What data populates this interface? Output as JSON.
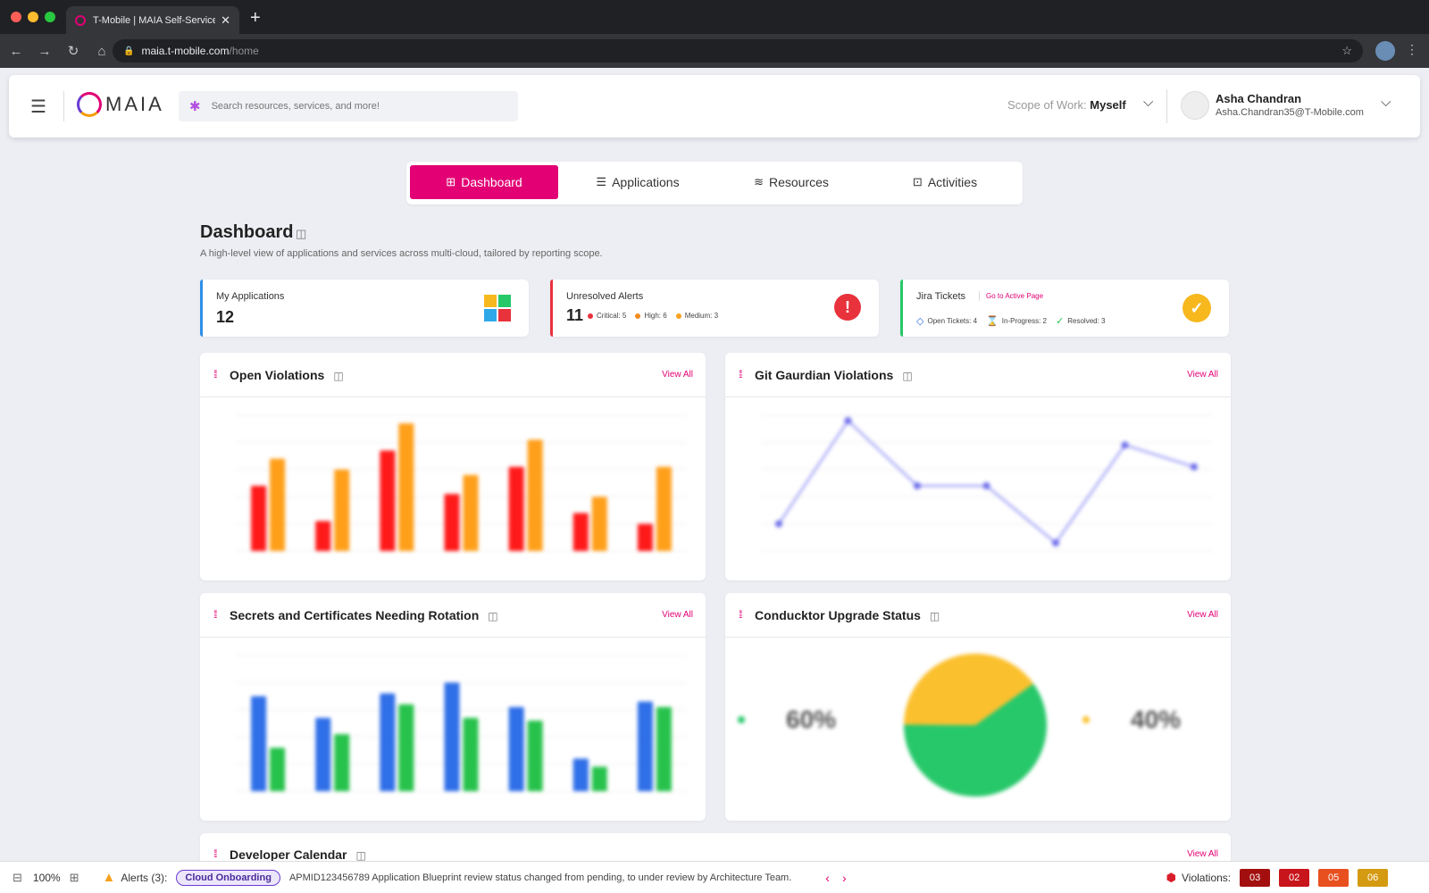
{
  "browser": {
    "tab_title": "T-Mobile | MAIA Self-Service",
    "url_domain": "maia.t-mobile.com",
    "url_path": "/home"
  },
  "header": {
    "logo_text": "MAIA",
    "search_placeholder": "Search resources, services, and more!",
    "scope_label": "Scope of Work:",
    "scope_value": "Myself",
    "user_name": "Asha Chandran",
    "user_email": "Asha.Chandran35@T-Mobile.com"
  },
  "tabs": [
    {
      "label": "Dashboard",
      "icon": "grid-icon"
    },
    {
      "label": "Applications",
      "icon": "stack-icon"
    },
    {
      "label": "Resources",
      "icon": "layers-icon"
    },
    {
      "label": "Activities",
      "icon": "activity-icon"
    }
  ],
  "page": {
    "title": "Dashboard",
    "subtitle": "A high-level view of applications and services across multi-cloud, tailored by reporting scope."
  },
  "cards": {
    "applications": {
      "label": "My Applications",
      "value": "12"
    },
    "alerts": {
      "label": "Unresolved Alerts",
      "value": "11",
      "critical": "Critical: 5",
      "high": "High: 6",
      "medium": "Medium: 3"
    },
    "jira": {
      "label": "Jira Tickets",
      "link": "Go to Active Page",
      "open": "Open Tickets: 4",
      "in_progress": "In-Progress: 2",
      "resolved": "Resolved: 3"
    }
  },
  "widgets": {
    "open_violations": {
      "title": "Open Violations",
      "view_all": "View All"
    },
    "git_guardian": {
      "title": "Git Gaurdian Violations",
      "view_all": "View All"
    },
    "secrets": {
      "title": "Secrets and Certificates Needing Rotation",
      "view_all": "View All"
    },
    "conduktor": {
      "title": "Conducktor Upgrade Status",
      "view_all": "View All",
      "left_pct": "60%",
      "right_pct": "40%"
    },
    "calendar": {
      "title": "Developer Calendar",
      "view_all": "View All"
    }
  },
  "chart_data": [
    {
      "type": "bar",
      "ylim": [
        0,
        50
      ],
      "series": [
        {
          "color": "#ff1a1a",
          "values": [
            24,
            11,
            37,
            21,
            31,
            14,
            10
          ]
        },
        {
          "color": "#ff9f1a",
          "values": [
            34,
            30,
            47,
            28,
            41,
            20,
            31
          ]
        }
      ]
    },
    {
      "type": "line",
      "ylim": [
        0,
        50
      ],
      "series": [
        {
          "color": "#8f8ff5",
          "values": [
            10,
            48,
            24,
            24,
            3,
            39,
            31
          ]
        }
      ]
    },
    {
      "type": "bar",
      "ylim": [
        0,
        50
      ],
      "series": [
        {
          "color": "#2f6fe8",
          "values": [
            35,
            27,
            36,
            40,
            31,
            12,
            33
          ]
        },
        {
          "color": "#27c24c",
          "values": [
            16,
            21,
            32,
            27,
            26,
            9,
            31
          ]
        }
      ]
    },
    {
      "type": "pie",
      "values": [
        60,
        40
      ],
      "colors": [
        "#27c86a",
        "#fbc02d"
      ]
    }
  ],
  "footer": {
    "zoom": "100%",
    "alerts_label": "Alerts (3):",
    "badge": "Cloud Onboarding",
    "message": "APMID123456789 Application Blueprint review status changed from pending, to under review by Architecture Team.",
    "violations_label": "Violations:",
    "violation_counts": [
      "03",
      "02",
      "05",
      "06"
    ],
    "violation_colors": [
      "#a30f0f",
      "#c8141b",
      "#e8501f",
      "#d49a11"
    ]
  }
}
